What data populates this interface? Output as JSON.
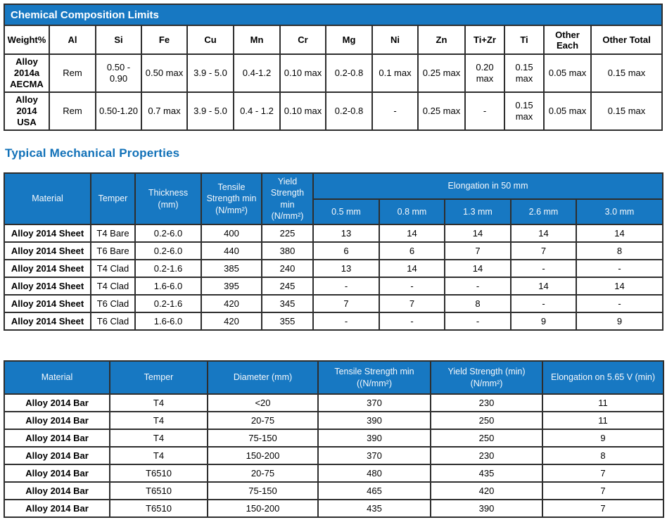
{
  "colors": {
    "header_blue": "#1778c2",
    "section_title_blue": "#1171b8",
    "border_dark": "#2e2e2e",
    "header_text": "#ffffff"
  },
  "chemical_table": {
    "title": "Chemical Composition Limits",
    "columns": [
      "Weight%",
      "Al",
      "Si",
      "Fe",
      "Cu",
      "Mn",
      "Cr",
      "Mg",
      "Ni",
      "Zn",
      "Ti+Zr",
      "Ti",
      "Other Each",
      "Other Total"
    ],
    "rows": [
      {
        "label": "Alloy 2014a AECMA",
        "values": [
          "Rem",
          "0.50 - 0.90",
          "0.50 max",
          "3.9 - 5.0",
          "0.4-1.2",
          "0.10 max",
          "0.2-0.8",
          "0.1 max",
          "0.25 max",
          "0.20 max",
          "0.15 max",
          "0.05 max",
          "0.15 max"
        ]
      },
      {
        "label": "Alloy 2014 USA",
        "values": [
          "Rem",
          "0.50-1.20",
          "0.7 max",
          "3.9 - 5.0",
          "0.4 - 1.2",
          "0.10 max",
          "0.2-0.8",
          "-",
          "0.25 max",
          "-",
          "0.15 max",
          "0.05 max",
          "0.15 max"
        ]
      }
    ]
  },
  "mechanical_section": {
    "title": "Typical Mechanical Properties"
  },
  "sheet_table": {
    "main_columns": [
      "Material",
      "Temper",
      "Thickness (mm)",
      "Tensile Strength min (N/mm²)",
      "Yield Strength min (N/mm²)"
    ],
    "elongation_group_label": "Elongation in 50 mm",
    "elongation_columns": [
      "0.5 mm",
      "0.8 mm",
      "1.3 mm",
      "2.6 mm",
      "3.0 mm"
    ],
    "rows": [
      {
        "material": "Alloy 2014 Sheet",
        "temper": "T4 Bare",
        "thickness": "0.2-6.0",
        "tensile": "400",
        "yield": "225",
        "elongation": [
          "13",
          "14",
          "14",
          "14",
          "14"
        ]
      },
      {
        "material": "Alloy 2014 Sheet",
        "temper": "T6 Bare",
        "thickness": "0.2-6.0",
        "tensile": "440",
        "yield": "380",
        "elongation": [
          "6",
          "6",
          "7",
          "7",
          "8"
        ]
      },
      {
        "material": "Alloy 2014 Sheet",
        "temper": "T4 Clad",
        "thickness": "0.2-1.6",
        "tensile": "385",
        "yield": "240",
        "elongation": [
          "13",
          "14",
          "14",
          "-",
          "-"
        ]
      },
      {
        "material": "Alloy 2014 Sheet",
        "temper": "T4 Clad",
        "thickness": "1.6-6.0",
        "tensile": "395",
        "yield": "245",
        "elongation": [
          "-",
          "-",
          "-",
          "14",
          "14"
        ]
      },
      {
        "material": "Alloy 2014 Sheet",
        "temper": "T6 Clad",
        "thickness": "0.2-1.6",
        "tensile": "420",
        "yield": "345",
        "elongation": [
          "7",
          "7",
          "8",
          "-",
          "-"
        ]
      },
      {
        "material": "Alloy 2014 Sheet",
        "temper": "T6 Clad",
        "thickness": "1.6-6.0",
        "tensile": "420",
        "yield": "355",
        "elongation": [
          "-",
          "-",
          "-",
          "9",
          "9"
        ]
      }
    ]
  },
  "bar_table": {
    "columns": [
      "Material",
      "Temper",
      "Diameter (mm)",
      "Tensile Strength min ((N/mm²)",
      "Yield Strength (min) (N/mm²)",
      "Elongation on 5.65 V (min)"
    ],
    "rows": [
      {
        "material": "Alloy 2014 Bar",
        "temper": "T4",
        "diameter": "<20",
        "tensile": "370",
        "yield": "230",
        "elongation": "11"
      },
      {
        "material": "Alloy 2014 Bar",
        "temper": "T4",
        "diameter": "20-75",
        "tensile": "390",
        "yield": "250",
        "elongation": "11"
      },
      {
        "material": "Alloy 2014 Bar",
        "temper": "T4",
        "diameter": "75-150",
        "tensile": "390",
        "yield": "250",
        "elongation": "9"
      },
      {
        "material": "Alloy 2014 Bar",
        "temper": "T4",
        "diameter": "150-200",
        "tensile": "370",
        "yield": "230",
        "elongation": "8"
      },
      {
        "material": "Alloy 2014 Bar",
        "temper": "T6510",
        "diameter": "20-75",
        "tensile": "480",
        "yield": "435",
        "elongation": "7"
      },
      {
        "material": "Alloy 2014 Bar",
        "temper": "T6510",
        "diameter": "75-150",
        "tensile": "465",
        "yield": "420",
        "elongation": "7"
      },
      {
        "material": "Alloy 2014 Bar",
        "temper": "T6510",
        "diameter": "150-200",
        "tensile": "435",
        "yield": "390",
        "elongation": "7"
      }
    ]
  }
}
